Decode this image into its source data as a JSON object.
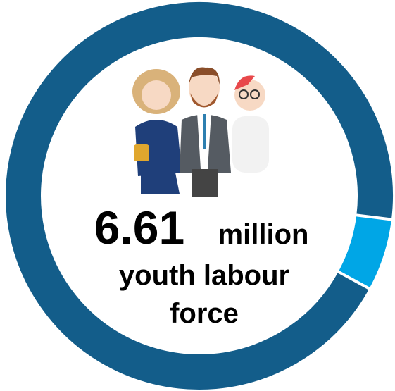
{
  "chart_data": {
    "type": "donut",
    "values": [
      6,
      94
    ],
    "colors": [
      "#00a6e6",
      "#135d8a"
    ],
    "start_angle": 97,
    "big_number": "6.61",
    "unit": "million",
    "caption_lines": [
      "youth labour",
      "force"
    ]
  }
}
